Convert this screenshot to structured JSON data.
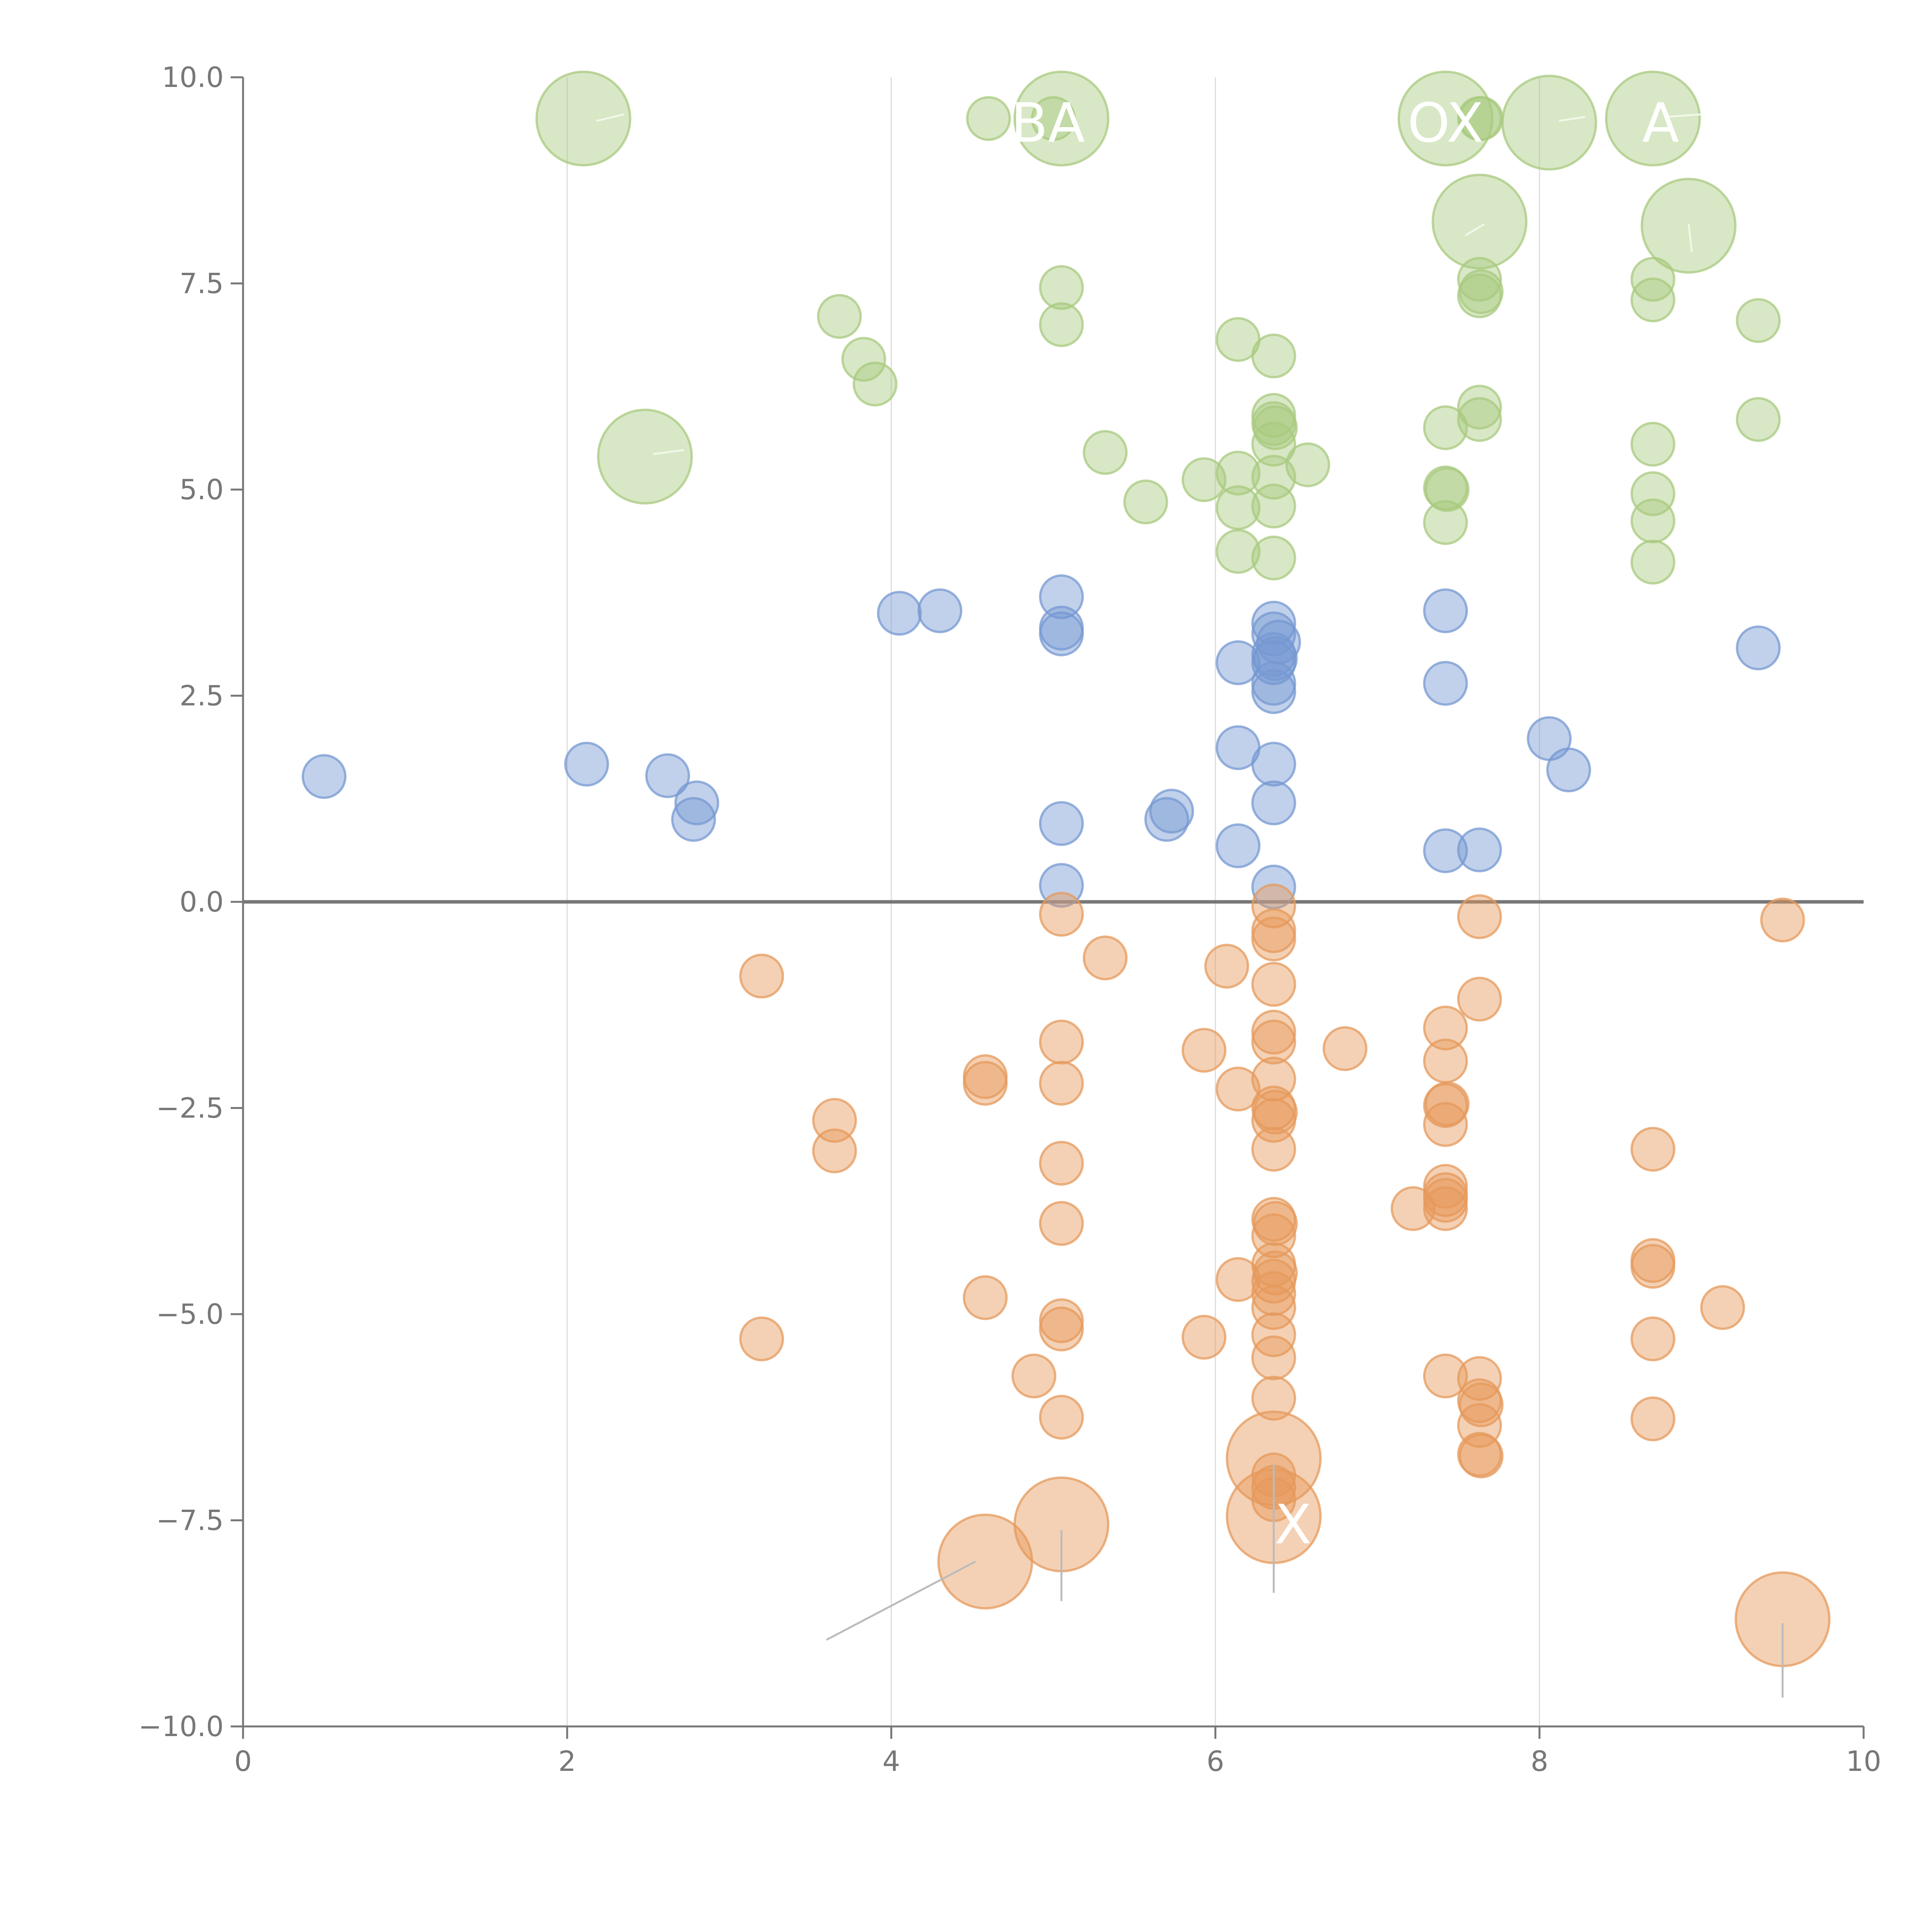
{
  "chart_data": {
    "type": "scatter",
    "subtype": "bubble",
    "title": "",
    "xlabel": "",
    "ylabel": "",
    "xlim": [
      0,
      10
    ],
    "ylim": [
      -10,
      10
    ],
    "x_ticks": [
      0,
      2,
      4,
      6,
      8,
      10
    ],
    "x_tick_labels": [
      "0",
      "2",
      "4",
      "6",
      "8",
      "10"
    ],
    "y_ticks": [
      10,
      7.5,
      5,
      2.5,
      0,
      -2.5,
      -5,
      -7.5,
      -10
    ],
    "y_tick_labels": [
      "10.0",
      "7.5",
      "5.0",
      "2.5",
      "0.0",
      "−2.5",
      "−5.0",
      "−7.5",
      "−10.0"
    ],
    "vertical_gridlines_at": [
      2,
      4,
      6,
      8
    ],
    "reference_line_y": 0,
    "colors": {
      "green": "#a8c97f",
      "blue": "#7598d2",
      "orange": "#e69a5c",
      "grid": "#dddddd",
      "axis": "#777777",
      "leader": "#bbbbbb",
      "leader_light": "#f2f7ea"
    },
    "series": [
      {
        "name": "green",
        "color": "#a8c97f",
        "points": [
          {
            "x": 2.1,
            "y": 9.5,
            "r": 2.2
          },
          {
            "x": 4.6,
            "y": 9.5,
            "r": 1
          },
          {
            "x": 5.0,
            "y": 9.5,
            "r": 1
          },
          {
            "x": 5.05,
            "y": 9.5,
            "r": 2.2
          },
          {
            "x": 7.42,
            "y": 9.5,
            "r": 2.2
          },
          {
            "x": 7.63,
            "y": 9.5,
            "r": 1
          },
          {
            "x": 7.64,
            "y": 9.5,
            "r": 1
          },
          {
            "x": 8.06,
            "y": 9.45,
            "r": 2.2
          },
          {
            "x": 8.7,
            "y": 9.5,
            "r": 2.2
          },
          {
            "x": 7.63,
            "y": 8.25,
            "r": 2.2
          },
          {
            "x": 8.92,
            "y": 8.2,
            "r": 2.2
          },
          {
            "x": 3.68,
            "y": 7.1,
            "r": 1
          },
          {
            "x": 5.05,
            "y": 7.45,
            "r": 1
          },
          {
            "x": 5.05,
            "y": 7.0,
            "r": 1
          },
          {
            "x": 7.63,
            "y": 7.55,
            "r": 1
          },
          {
            "x": 7.63,
            "y": 7.35,
            "r": 1
          },
          {
            "x": 7.64,
            "y": 7.4,
            "r": 1
          },
          {
            "x": 8.7,
            "y": 7.55,
            "r": 1
          },
          {
            "x": 8.7,
            "y": 7.3,
            "r": 1
          },
          {
            "x": 9.35,
            "y": 7.05,
            "r": 1
          },
          {
            "x": 3.83,
            "y": 6.58,
            "r": 1
          },
          {
            "x": 3.9,
            "y": 6.28,
            "r": 1
          },
          {
            "x": 6.14,
            "y": 6.82,
            "r": 1
          },
          {
            "x": 6.36,
            "y": 6.62,
            "r": 1
          },
          {
            "x": 7.63,
            "y": 6.0,
            "r": 1
          },
          {
            "x": 7.63,
            "y": 5.85,
            "r": 1
          },
          {
            "x": 9.35,
            "y": 5.85,
            "r": 1
          },
          {
            "x": 2.48,
            "y": 5.4,
            "r": 2.2
          },
          {
            "x": 5.32,
            "y": 5.45,
            "r": 1
          },
          {
            "x": 6.36,
            "y": 5.9,
            "r": 1
          },
          {
            "x": 6.36,
            "y": 5.8,
            "r": 1
          },
          {
            "x": 6.37,
            "y": 5.75,
            "r": 1
          },
          {
            "x": 6.36,
            "y": 5.55,
            "r": 1
          },
          {
            "x": 7.42,
            "y": 5.75,
            "r": 1
          },
          {
            "x": 8.7,
            "y": 5.55,
            "r": 1
          },
          {
            "x": 5.57,
            "y": 4.85,
            "r": 1
          },
          {
            "x": 5.93,
            "y": 5.12,
            "r": 1
          },
          {
            "x": 6.14,
            "y": 5.2,
            "r": 1
          },
          {
            "x": 6.36,
            "y": 5.15,
            "r": 1
          },
          {
            "x": 6.57,
            "y": 5.3,
            "r": 1
          },
          {
            "x": 6.14,
            "y": 4.78,
            "r": 1
          },
          {
            "x": 6.36,
            "y": 4.8,
            "r": 1
          },
          {
            "x": 7.42,
            "y": 5.02,
            "r": 1
          },
          {
            "x": 7.43,
            "y": 5.0,
            "r": 1
          },
          {
            "x": 7.42,
            "y": 4.6,
            "r": 1
          },
          {
            "x": 8.7,
            "y": 4.95,
            "r": 1
          },
          {
            "x": 8.7,
            "y": 4.62,
            "r": 1
          },
          {
            "x": 6.14,
            "y": 4.25,
            "r": 1
          },
          {
            "x": 6.36,
            "y": 4.17,
            "r": 1
          },
          {
            "x": 8.7,
            "y": 4.12,
            "r": 1
          }
        ]
      },
      {
        "name": "blue",
        "color": "#7598d2",
        "points": [
          {
            "x": 0.5,
            "y": 1.52,
            "r": 1
          },
          {
            "x": 2.12,
            "y": 1.67,
            "r": 1
          },
          {
            "x": 2.62,
            "y": 1.53,
            "r": 1
          },
          {
            "x": 2.8,
            "y": 1.2,
            "r": 1
          },
          {
            "x": 2.78,
            "y": 1.0,
            "r": 1
          },
          {
            "x": 4.05,
            "y": 3.5,
            "r": 1
          },
          {
            "x": 4.3,
            "y": 3.53,
            "r": 1
          },
          {
            "x": 5.05,
            "y": 3.7,
            "r": 1
          },
          {
            "x": 5.05,
            "y": 3.32,
            "r": 1
          },
          {
            "x": 5.05,
            "y": 3.25,
            "r": 1
          },
          {
            "x": 5.05,
            "y": 0.95,
            "r": 1
          },
          {
            "x": 5.05,
            "y": 0.2,
            "r": 1
          },
          {
            "x": 5.7,
            "y": 1.0,
            "r": 1
          },
          {
            "x": 5.73,
            "y": 1.1,
            "r": 1
          },
          {
            "x": 6.14,
            "y": 2.9,
            "r": 1
          },
          {
            "x": 6.14,
            "y": 1.87,
            "r": 1
          },
          {
            "x": 6.14,
            "y": 0.68,
            "r": 1
          },
          {
            "x": 6.36,
            "y": 3.38,
            "r": 1
          },
          {
            "x": 6.36,
            "y": 3.25,
            "r": 1
          },
          {
            "x": 6.39,
            "y": 3.15,
            "r": 1
          },
          {
            "x": 6.36,
            "y": 3.0,
            "r": 1
          },
          {
            "x": 6.36,
            "y": 2.9,
            "r": 1
          },
          {
            "x": 6.37,
            "y": 2.95,
            "r": 1
          },
          {
            "x": 6.36,
            "y": 2.65,
            "r": 1
          },
          {
            "x": 6.36,
            "y": 2.55,
            "r": 1
          },
          {
            "x": 6.36,
            "y": 1.67,
            "r": 1
          },
          {
            "x": 6.36,
            "y": 1.2,
            "r": 1
          },
          {
            "x": 6.36,
            "y": 0.18,
            "r": 1
          },
          {
            "x": 7.42,
            "y": 3.53,
            "r": 1
          },
          {
            "x": 7.42,
            "y": 2.65,
            "r": 1
          },
          {
            "x": 7.42,
            "y": 0.62,
            "r": 1
          },
          {
            "x": 7.63,
            "y": 0.63,
            "r": 1
          },
          {
            "x": 8.06,
            "y": 1.98,
            "r": 1
          },
          {
            "x": 8.18,
            "y": 1.6,
            "r": 1
          },
          {
            "x": 9.35,
            "y": 3.08,
            "r": 1
          }
        ]
      },
      {
        "name": "orange",
        "color": "#e69a5c",
        "points": [
          {
            "x": 3.2,
            "y": -0.9,
            "r": 1
          },
          {
            "x": 3.2,
            "y": -5.3,
            "r": 1
          },
          {
            "x": 3.65,
            "y": -2.65,
            "r": 1
          },
          {
            "x": 3.65,
            "y": -3.02,
            "r": 1
          },
          {
            "x": 4.58,
            "y": -2.12,
            "r": 1
          },
          {
            "x": 4.58,
            "y": -2.2,
            "r": 1
          },
          {
            "x": 4.58,
            "y": -4.8,
            "r": 1
          },
          {
            "x": 4.58,
            "y": -8.0,
            "r": 2.2
          },
          {
            "x": 4.88,
            "y": -5.75,
            "r": 1
          },
          {
            "x": 5.05,
            "y": -0.15,
            "r": 1
          },
          {
            "x": 5.05,
            "y": -1.7,
            "r": 1
          },
          {
            "x": 5.05,
            "y": -2.2,
            "r": 1
          },
          {
            "x": 5.05,
            "y": -3.17,
            "r": 1
          },
          {
            "x": 5.05,
            "y": -3.9,
            "r": 1
          },
          {
            "x": 5.05,
            "y": -5.08,
            "r": 1
          },
          {
            "x": 5.05,
            "y": -5.18,
            "r": 1
          },
          {
            "x": 5.05,
            "y": -6.25,
            "r": 1
          },
          {
            "x": 5.05,
            "y": -7.55,
            "r": 2.2
          },
          {
            "x": 5.32,
            "y": -0.68,
            "r": 1
          },
          {
            "x": 5.93,
            "y": -1.8,
            "r": 1
          },
          {
            "x": 5.93,
            "y": -5.28,
            "r": 1
          },
          {
            "x": 6.07,
            "y": -0.78,
            "r": 1
          },
          {
            "x": 6.14,
            "y": -2.27,
            "r": 1
          },
          {
            "x": 6.14,
            "y": -4.58,
            "r": 1
          },
          {
            "x": 6.36,
            "y": -0.05,
            "r": 1
          },
          {
            "x": 6.36,
            "y": -0.35,
            "r": 1
          },
          {
            "x": 6.36,
            "y": -0.45,
            "r": 1
          },
          {
            "x": 6.36,
            "y": -1.0,
            "r": 1
          },
          {
            "x": 6.36,
            "y": -1.58,
            "r": 1
          },
          {
            "x": 6.36,
            "y": -1.7,
            "r": 1
          },
          {
            "x": 6.36,
            "y": -2.15,
            "r": 1
          },
          {
            "x": 6.36,
            "y": -2.5,
            "r": 1
          },
          {
            "x": 6.37,
            "y": -2.55,
            "r": 1
          },
          {
            "x": 6.36,
            "y": -2.65,
            "r": 1
          },
          {
            "x": 6.36,
            "y": -3.0,
            "r": 1
          },
          {
            "x": 6.36,
            "y": -3.85,
            "r": 1
          },
          {
            "x": 6.37,
            "y": -3.9,
            "r": 1
          },
          {
            "x": 6.36,
            "y": -4.05,
            "r": 1
          },
          {
            "x": 6.36,
            "y": -4.4,
            "r": 1
          },
          {
            "x": 6.37,
            "y": -4.5,
            "r": 1
          },
          {
            "x": 6.36,
            "y": -4.6,
            "r": 1
          },
          {
            "x": 6.36,
            "y": -4.75,
            "r": 1
          },
          {
            "x": 6.36,
            "y": -4.92,
            "r": 1
          },
          {
            "x": 6.36,
            "y": -5.25,
            "r": 1
          },
          {
            "x": 6.36,
            "y": -5.53,
            "r": 1
          },
          {
            "x": 6.36,
            "y": -6.02,
            "r": 1
          },
          {
            "x": 6.36,
            "y": -6.95,
            "r": 1
          },
          {
            "x": 6.36,
            "y": -7.1,
            "r": 1
          },
          {
            "x": 6.36,
            "y": -7.25,
            "r": 1
          },
          {
            "x": 6.36,
            "y": -6.75,
            "r": 2.2
          },
          {
            "x": 6.36,
            "y": -7.45,
            "r": 2.2
          },
          {
            "x": 6.8,
            "y": -1.78,
            "r": 1
          },
          {
            "x": 7.22,
            "y": -3.72,
            "r": 1
          },
          {
            "x": 7.42,
            "y": -1.53,
            "r": 1
          },
          {
            "x": 7.42,
            "y": -1.93,
            "r": 1
          },
          {
            "x": 7.42,
            "y": -2.47,
            "r": 1
          },
          {
            "x": 7.43,
            "y": -2.45,
            "r": 1
          },
          {
            "x": 7.42,
            "y": -2.7,
            "r": 1
          },
          {
            "x": 7.42,
            "y": -3.45,
            "r": 1
          },
          {
            "x": 7.42,
            "y": -3.55,
            "r": 1
          },
          {
            "x": 7.42,
            "y": -3.62,
            "r": 1
          },
          {
            "x": 7.42,
            "y": -3.72,
            "r": 1
          },
          {
            "x": 7.42,
            "y": -5.75,
            "r": 1
          },
          {
            "x": 7.63,
            "y": -0.18,
            "r": 1
          },
          {
            "x": 7.63,
            "y": -1.18,
            "r": 1
          },
          {
            "x": 7.63,
            "y": -5.78,
            "r": 1
          },
          {
            "x": 7.63,
            "y": -6.05,
            "r": 1
          },
          {
            "x": 7.64,
            "y": -6.1,
            "r": 1
          },
          {
            "x": 7.63,
            "y": -6.35,
            "r": 1
          },
          {
            "x": 7.63,
            "y": -6.7,
            "r": 1
          },
          {
            "x": 7.64,
            "y": -6.72,
            "r": 1
          },
          {
            "x": 8.7,
            "y": -3.0,
            "r": 1
          },
          {
            "x": 8.7,
            "y": -4.35,
            "r": 1
          },
          {
            "x": 8.7,
            "y": -4.42,
            "r": 1
          },
          {
            "x": 8.7,
            "y": -5.3,
            "r": 1
          },
          {
            "x": 8.7,
            "y": -6.27,
            "r": 1
          },
          {
            "x": 9.13,
            "y": -4.92,
            "r": 1
          },
          {
            "x": 9.5,
            "y": -0.22,
            "r": 1
          },
          {
            "x": 9.5,
            "y": -8.7,
            "r": 2.2
          }
        ]
      }
    ],
    "annotations": [
      {
        "text": "BA",
        "x": 5.05,
        "y": 9.5,
        "clip": "bottom-left"
      },
      {
        "text": "OX",
        "x": 7.42,
        "y": 9.5,
        "clip": "right"
      },
      {
        "text": "A",
        "x": 8.7,
        "y": 9.5,
        "clip": "right"
      },
      {
        "text": "X",
        "x": 6.36,
        "y": -7.45,
        "clip": "none"
      }
    ],
    "leader_lines": [
      {
        "x1": 2.18,
        "y1": 9.47,
        "x2": 2.35,
        "y2": 9.55,
        "color": "leader_light"
      },
      {
        "x1": 2.53,
        "y1": 5.43,
        "x2": 2.72,
        "y2": 5.48,
        "color": "leader_light"
      },
      {
        "x1": 7.54,
        "y1": 8.08,
        "x2": 7.66,
        "y2": 8.22,
        "color": "leader_light"
      },
      {
        "x1": 8.92,
        "y1": 8.22,
        "x2": 8.94,
        "y2": 7.88,
        "color": "leader_light"
      },
      {
        "x1": 8.12,
        "y1": 9.47,
        "x2": 8.28,
        "y2": 9.52,
        "color": "leader_light"
      },
      {
        "x1": 8.78,
        "y1": 9.52,
        "x2": 9.0,
        "y2": 9.55,
        "color": "leader_light"
      },
      {
        "x1": 4.52,
        "y1": -8.0,
        "x2": 3.6,
        "y2": -8.95,
        "color": "leader"
      },
      {
        "x1": 5.05,
        "y1": -7.62,
        "x2": 5.05,
        "y2": -8.48,
        "color": "leader"
      },
      {
        "x1": 6.36,
        "y1": -6.82,
        "x2": 6.36,
        "y2": -8.38,
        "color": "leader"
      },
      {
        "x1": 9.5,
        "y1": -8.75,
        "x2": 9.5,
        "y2": -9.65,
        "color": "leader"
      }
    ]
  }
}
